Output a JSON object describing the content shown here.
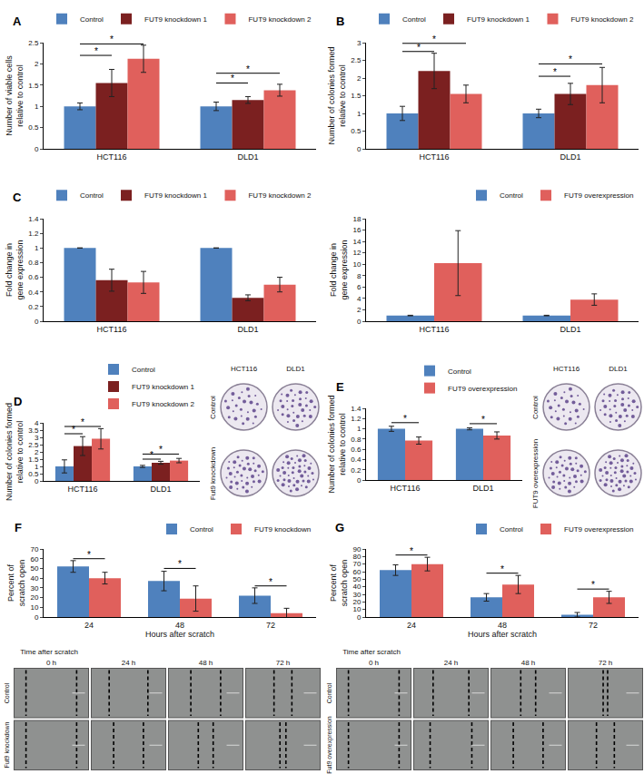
{
  "chart_data": [
    {
      "panel": "A",
      "type": "bar",
      "y_label": "Number of viable cells relative to control",
      "categories": [
        "HCT116",
        "DLD1"
      ],
      "series": [
        {
          "name": "Control",
          "color": "#4f81bd",
          "values": [
            1.0,
            1.0
          ],
          "errors": [
            0.08,
            0.1
          ]
        },
        {
          "name": "FUT9 knockdown 1",
          "color": "#7b2020",
          "values": [
            1.55,
            1.15
          ],
          "errors": [
            0.32,
            0.08
          ]
        },
        {
          "name": "FUT9 knockdown 2",
          "color": "#e0605c",
          "values": [
            2.12,
            1.38
          ],
          "errors": [
            0.32,
            0.14
          ]
        }
      ],
      "ylim": [
        0,
        2.5
      ],
      "yticks": [
        0,
        0.5,
        1,
        1.5,
        2,
        2.5
      ],
      "grid": false,
      "legend": "top-right",
      "significance": [
        {
          "category": 0,
          "from": 0,
          "to": 1,
          "y": 2.2,
          "text": "*"
        },
        {
          "category": 0,
          "from": 0,
          "to": 2,
          "y": 2.47,
          "text": "*"
        },
        {
          "category": 1,
          "from": 0,
          "to": 1,
          "y": 1.55,
          "text": "*"
        },
        {
          "category": 1,
          "from": 0,
          "to": 2,
          "y": 1.78,
          "text": "*"
        }
      ]
    },
    {
      "panel": "B",
      "type": "bar",
      "y_label": "Number of colonies formed relative to control",
      "categories": [
        "HCT116",
        "DLD1"
      ],
      "series": [
        {
          "name": "Control",
          "color": "#4f81bd",
          "values": [
            1.0,
            1.0
          ],
          "errors": [
            0.2,
            0.12
          ]
        },
        {
          "name": "FUT9 knockdown 1",
          "color": "#7b2020",
          "values": [
            2.2,
            1.55
          ],
          "errors": [
            0.5,
            0.3
          ]
        },
        {
          "name": "FUT9 knockdown 2",
          "color": "#e0605c",
          "values": [
            1.55,
            1.8
          ],
          "errors": [
            0.25,
            0.5
          ]
        }
      ],
      "ylim": [
        0,
        3
      ],
      "yticks": [
        0,
        0.5,
        1,
        1.5,
        2,
        2.5,
        3
      ],
      "grid": false,
      "legend": "top-right",
      "significance": [
        {
          "category": 0,
          "from": 0,
          "to": 1,
          "y": 2.75,
          "text": "*"
        },
        {
          "category": 0,
          "from": 0,
          "to": 2,
          "y": 2.98,
          "text": "*"
        },
        {
          "category": 1,
          "from": 0,
          "to": 1,
          "y": 2.05,
          "text": "*"
        },
        {
          "category": 1,
          "from": 0,
          "to": 2,
          "y": 2.4,
          "text": "*"
        }
      ]
    },
    {
      "panel": "C",
      "type": "bar",
      "y_label": "Fold change in gene expression",
      "categories": [
        "HCT116",
        "DLD1"
      ],
      "series": [
        {
          "name": "Control",
          "color": "#4f81bd",
          "values": [
            1.0,
            1.0
          ],
          "errors": [
            0,
            0
          ]
        },
        {
          "name": "FUT9 knockdown 1",
          "color": "#7b2020",
          "values": [
            0.56,
            0.32
          ],
          "errors": [
            0.15,
            0.04
          ]
        },
        {
          "name": "FUT9 knockdown 2",
          "color": "#e0605c",
          "values": [
            0.53,
            0.5
          ],
          "errors": [
            0.15,
            0.1
          ]
        }
      ],
      "ylim": [
        0,
        1.4
      ],
      "yticks": [
        0,
        0.2,
        0.4,
        0.6,
        0.8,
        1,
        1.2,
        1.4
      ],
      "grid": false,
      "legend": "top-right",
      "significance": []
    },
    {
      "type": "bar",
      "y_label": "Fold change in gene expression",
      "categories": [
        "HCT116",
        "DLD1"
      ],
      "series": [
        {
          "name": "Control",
          "color": "#4f81bd",
          "values": [
            1.0,
            1.0
          ],
          "errors": [
            0.05,
            0.05
          ]
        },
        {
          "name": "FUT9 overexpression",
          "color": "#e0605c",
          "values": [
            10.2,
            3.8
          ],
          "errors": [
            5.7,
            1.0
          ]
        }
      ],
      "ylim": [
        0,
        18
      ],
      "yticks": [
        0,
        2,
        4,
        6,
        8,
        10,
        12,
        14,
        16,
        18
      ],
      "grid": false,
      "legend": "top-right",
      "significance": []
    },
    {
      "panel": "D",
      "type": "bar",
      "y_label": "Number of colonies formed relative to control",
      "categories": [
        "HCT116",
        "DLD1"
      ],
      "series": [
        {
          "name": "Control",
          "color": "#4f81bd",
          "values": [
            1.0,
            1.0
          ],
          "errors": [
            0.45,
            0.07
          ]
        },
        {
          "name": "FUT9 knockdown 1",
          "color": "#7b2020",
          "values": [
            2.4,
            1.25
          ],
          "errors": [
            0.65,
            0.1
          ]
        },
        {
          "name": "FUT9 knockdown 2",
          "color": "#e0605c",
          "values": [
            2.9,
            1.4
          ],
          "errors": [
            0.7,
            0.15
          ]
        }
      ],
      "ylim": [
        0,
        4
      ],
      "yticks": [
        0,
        0.5,
        1,
        1.5,
        2,
        2.5,
        3,
        3.5,
        4
      ],
      "grid": false,
      "legend": "top-right",
      "significance": [
        {
          "category": 0,
          "from": 0,
          "to": 1,
          "y": 3.25,
          "text": "*"
        },
        {
          "category": 0,
          "from": 0,
          "to": 2,
          "y": 3.75,
          "text": "*"
        },
        {
          "category": 1,
          "from": 0,
          "to": 1,
          "y": 1.5,
          "text": "*"
        },
        {
          "category": 1,
          "from": 0,
          "to": 2,
          "y": 1.85,
          "text": "*"
        }
      ]
    },
    {
      "panel": "E",
      "type": "bar",
      "y_label": "Number of colonies formed relative to control",
      "categories": [
        "HCT116",
        "DLD1"
      ],
      "series": [
        {
          "name": "Control",
          "color": "#4f81bd",
          "values": [
            1.0,
            1.0
          ],
          "errors": [
            0.05,
            0.02
          ]
        },
        {
          "name": "FUT9 overexpression",
          "color": "#e0605c",
          "values": [
            0.77,
            0.87
          ],
          "errors": [
            0.07,
            0.07
          ]
        }
      ],
      "ylim": [
        0,
        1.4
      ],
      "yticks": [
        0,
        0.2,
        0.4,
        0.6,
        0.8,
        1,
        1.2,
        1.4
      ],
      "grid": false,
      "legend": "top-right",
      "significance": [
        {
          "category": 0,
          "from": 0,
          "to": 1,
          "y": 1.12,
          "text": "*"
        },
        {
          "category": 1,
          "from": 0,
          "to": 1,
          "y": 1.1,
          "text": "*"
        }
      ]
    },
    {
      "panel": "F",
      "type": "bar",
      "y_label": "Percent of scratch open",
      "x_label": "Hours after scratch",
      "categories": [
        "24",
        "48",
        "72"
      ],
      "series": [
        {
          "name": "Control",
          "color": "#4f81bd",
          "values": [
            52,
            37,
            22
          ],
          "errors": [
            6,
            10,
            8
          ]
        },
        {
          "name": "FUT9 knockdown",
          "color": "#e0605c",
          "values": [
            40,
            19,
            4
          ],
          "errors": [
            6,
            13,
            5
          ]
        }
      ],
      "ylim": [
        0,
        70
      ],
      "yticks": [
        0,
        10,
        20,
        30,
        40,
        50,
        60,
        70
      ],
      "grid": false,
      "legend": "top-right",
      "significance": [
        {
          "category": 0,
          "from": 0,
          "to": 1,
          "y": 60,
          "text": "*"
        },
        {
          "category": 1,
          "from": 0,
          "to": 1,
          "y": 50,
          "text": "*"
        },
        {
          "category": 2,
          "from": 0,
          "to": 1,
          "y": 32,
          "text": "*"
        }
      ]
    },
    {
      "panel": "G",
      "type": "bar",
      "y_label": "Percent of scratch open",
      "x_label": "Hours after scratch",
      "categories": [
        "24",
        "48",
        "72"
      ],
      "series": [
        {
          "name": "Control",
          "color": "#4f81bd",
          "values": [
            62,
            26,
            3
          ],
          "errors": [
            7,
            5,
            3
          ]
        },
        {
          "name": "FUT9 overexpression",
          "color": "#e0605c",
          "values": [
            70,
            43,
            26
          ],
          "errors": [
            9,
            12,
            8
          ]
        }
      ],
      "ylim": [
        0,
        90
      ],
      "yticks": [
        0,
        10,
        20,
        30,
        40,
        50,
        60,
        70,
        80,
        90
      ],
      "grid": false,
      "legend": "top-right",
      "significance": [
        {
          "category": 0,
          "from": 0,
          "to": 1,
          "y": 82,
          "text": "*"
        },
        {
          "category": 1,
          "from": 0,
          "to": 1,
          "y": 58,
          "text": "*"
        },
        {
          "category": 2,
          "from": 0,
          "to": 1,
          "y": 37,
          "text": "*"
        }
      ]
    }
  ],
  "image_panels": [
    {
      "kind": "plate",
      "columns": [
        "HCT116",
        "DLD1"
      ],
      "rows": [
        "Control",
        "Fut9 knockdown"
      ]
    },
    {
      "kind": "plate",
      "columns": [
        "HCT116",
        "DLD1"
      ],
      "rows": [
        "Control",
        "FUT9 overexpression"
      ]
    },
    {
      "kind": "scratch",
      "title": "Time after scratch",
      "columns": [
        "0 h",
        "24 h",
        "48 h",
        "72 h"
      ],
      "rows": [
        "Control",
        "Fut9 knockdown"
      ]
    },
    {
      "kind": "scratch",
      "title": "Time after scratch",
      "columns": [
        "0 h",
        "24 h",
        "48 h",
        "72 h"
      ],
      "rows": [
        "Control",
        "Fut9 overexpression"
      ]
    }
  ]
}
